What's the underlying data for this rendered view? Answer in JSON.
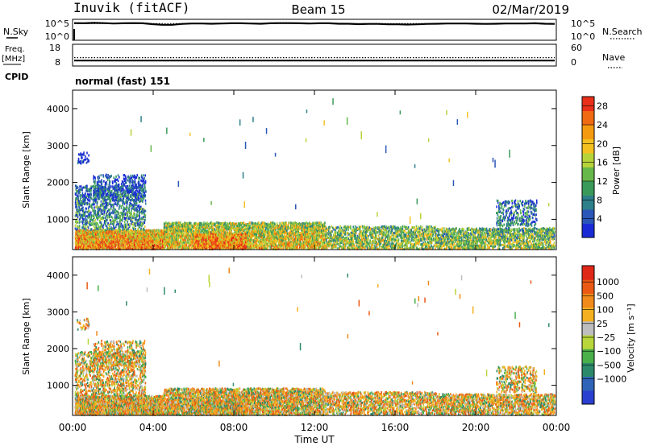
{
  "header": {
    "station": "Inuvik (fitACF)",
    "beam": "Beam 15",
    "date": "02/Mar/2019"
  },
  "chart_data": [
    {
      "type": "line",
      "panel": "noise",
      "left_label": "N.Sky",
      "right_label": "N.Search",
      "left_ticks": [
        "10^5",
        "10^0"
      ],
      "right_ticks": [
        "10^5",
        "10^0"
      ],
      "series": [
        {
          "values": [
            0.82,
            0.81,
            0.83,
            0.82,
            0.8,
            0.81,
            0.82,
            0.81,
            0.77,
            0.74,
            0.74,
            0.78,
            0.8,
            0.8,
            0.79,
            0.8,
            0.81,
            0.81,
            0.8,
            0.79,
            0.81,
            0.82,
            0.82,
            0.81,
            0.8,
            0.81,
            0.81,
            0.79,
            0.79,
            0.77,
            0.78,
            0.78,
            0.76,
            0.76,
            0.75,
            0.76,
            0.78,
            0.79,
            0.8,
            0.8,
            0.8,
            0.79,
            0.78,
            0.79,
            0.8,
            0.8,
            0.8,
            0.81,
            0.79,
            0.78
          ]
        },
        {
          "values": [
            0.8,
            0.8,
            0.8,
            0.8,
            0.8,
            0.8,
            0.8,
            0.8,
            0.8,
            0.8,
            0.8,
            0.8,
            0.8,
            0.8,
            0.8,
            0.8,
            0.8,
            0.8,
            0.8,
            0.8,
            0.8,
            0.8,
            0.8,
            0.8,
            0.8,
            0.8,
            0.8,
            0.8,
            0.8,
            0.8,
            0.8,
            0.8,
            0.8,
            0.8,
            0.8,
            0.8,
            0.8,
            0.8,
            0.8,
            0.8,
            0.8,
            0.8,
            0.8,
            0.8,
            0.8,
            0.8,
            0.8,
            0.8,
            0.8,
            0.8
          ]
        }
      ]
    },
    {
      "type": "line",
      "panel": "frequency",
      "left_label": "Freq.",
      "left_unit": "[MHz]",
      "right_label": "Nave",
      "left_ticks": [
        "18",
        "8"
      ],
      "right_ticks": [
        "60",
        "0"
      ],
      "ylim_left": [
        8,
        18
      ],
      "ylim_right": [
        0,
        60
      ],
      "series": [
        {
          "name": "Freq.",
          "values": [
            10.5,
            10.5,
            10.5,
            10.5,
            10.5,
            10.5,
            10.5,
            10.5,
            10.5,
            10.5,
            10.5,
            10.5,
            10.5,
            10.5,
            10.5,
            10.5,
            10.5,
            10.5,
            10.5,
            10.5
          ]
        },
        {
          "name": "Nave",
          "values": [
            23,
            23,
            23,
            23,
            23,
            23,
            23,
            23,
            23,
            23,
            23,
            23,
            23,
            23,
            23,
            23,
            23,
            23,
            23,
            23
          ]
        }
      ]
    },
    {
      "type": "heatmap",
      "panel": "power",
      "cpid_label": "CPID",
      "cpid": "normal (fast) 151",
      "ylabel": "Slant Range [km]",
      "yticks": [
        "1000",
        "2000",
        "3000",
        "4000"
      ],
      "ylim": [
        180,
        4500
      ],
      "xlim": [
        0,
        24
      ],
      "colorbar": {
        "label": "Power [dB]",
        "ticks": [
          "4",
          "8",
          "12",
          "16",
          "20",
          "24",
          "28"
        ],
        "range": [
          0,
          30
        ],
        "colors": [
          "#1a2bd6",
          "#2a56b8",
          "#2d7f8a",
          "#3a9a5a",
          "#67b84a",
          "#b7d33a",
          "#f4c020",
          "#f49a10",
          "#ef6a12",
          "#e8301a"
        ]
      },
      "features": "dense near-range echoes 180-1000 km across the day; strongest (24-30 dB) 00:00-04:30 and 06:00-08:30; patchy echoes up to ~2200 km around 00:00-03:30 and 21:00-23:00"
    },
    {
      "type": "heatmap",
      "panel": "velocity",
      "ylabel": "Slant Range [km]",
      "yticks": [
        "1000",
        "2000",
        "3000",
        "4000"
      ],
      "ylim": [
        180,
        4500
      ],
      "xlim": [
        0,
        24
      ],
      "colorbar": {
        "label": "Velocity [m s⁻¹]",
        "ticks": [
          "1000",
          "500",
          "100",
          "25",
          "−25",
          "−100",
          "−500",
          "−1000"
        ],
        "colors": [
          "#2a3fd0",
          "#2f64b8",
          "#2c8a6a",
          "#4ab04a",
          "#b8d63a",
          "#bdbdbd",
          "#f4b020",
          "#f08a1a",
          "#ea5a14",
          "#e02818"
        ]
      },
      "features": "mostly negative (orange, -100 to -500 m/s) echoes; patch up to ~2100 km 00:00-03:30; mixed green/yellow near range 04:00-12:00"
    }
  ],
  "xaxis": {
    "label": "Time UT",
    "ticks": [
      "00:00",
      "04:00",
      "08:00",
      "12:00",
      "16:00",
      "20:00",
      "00:00"
    ]
  }
}
